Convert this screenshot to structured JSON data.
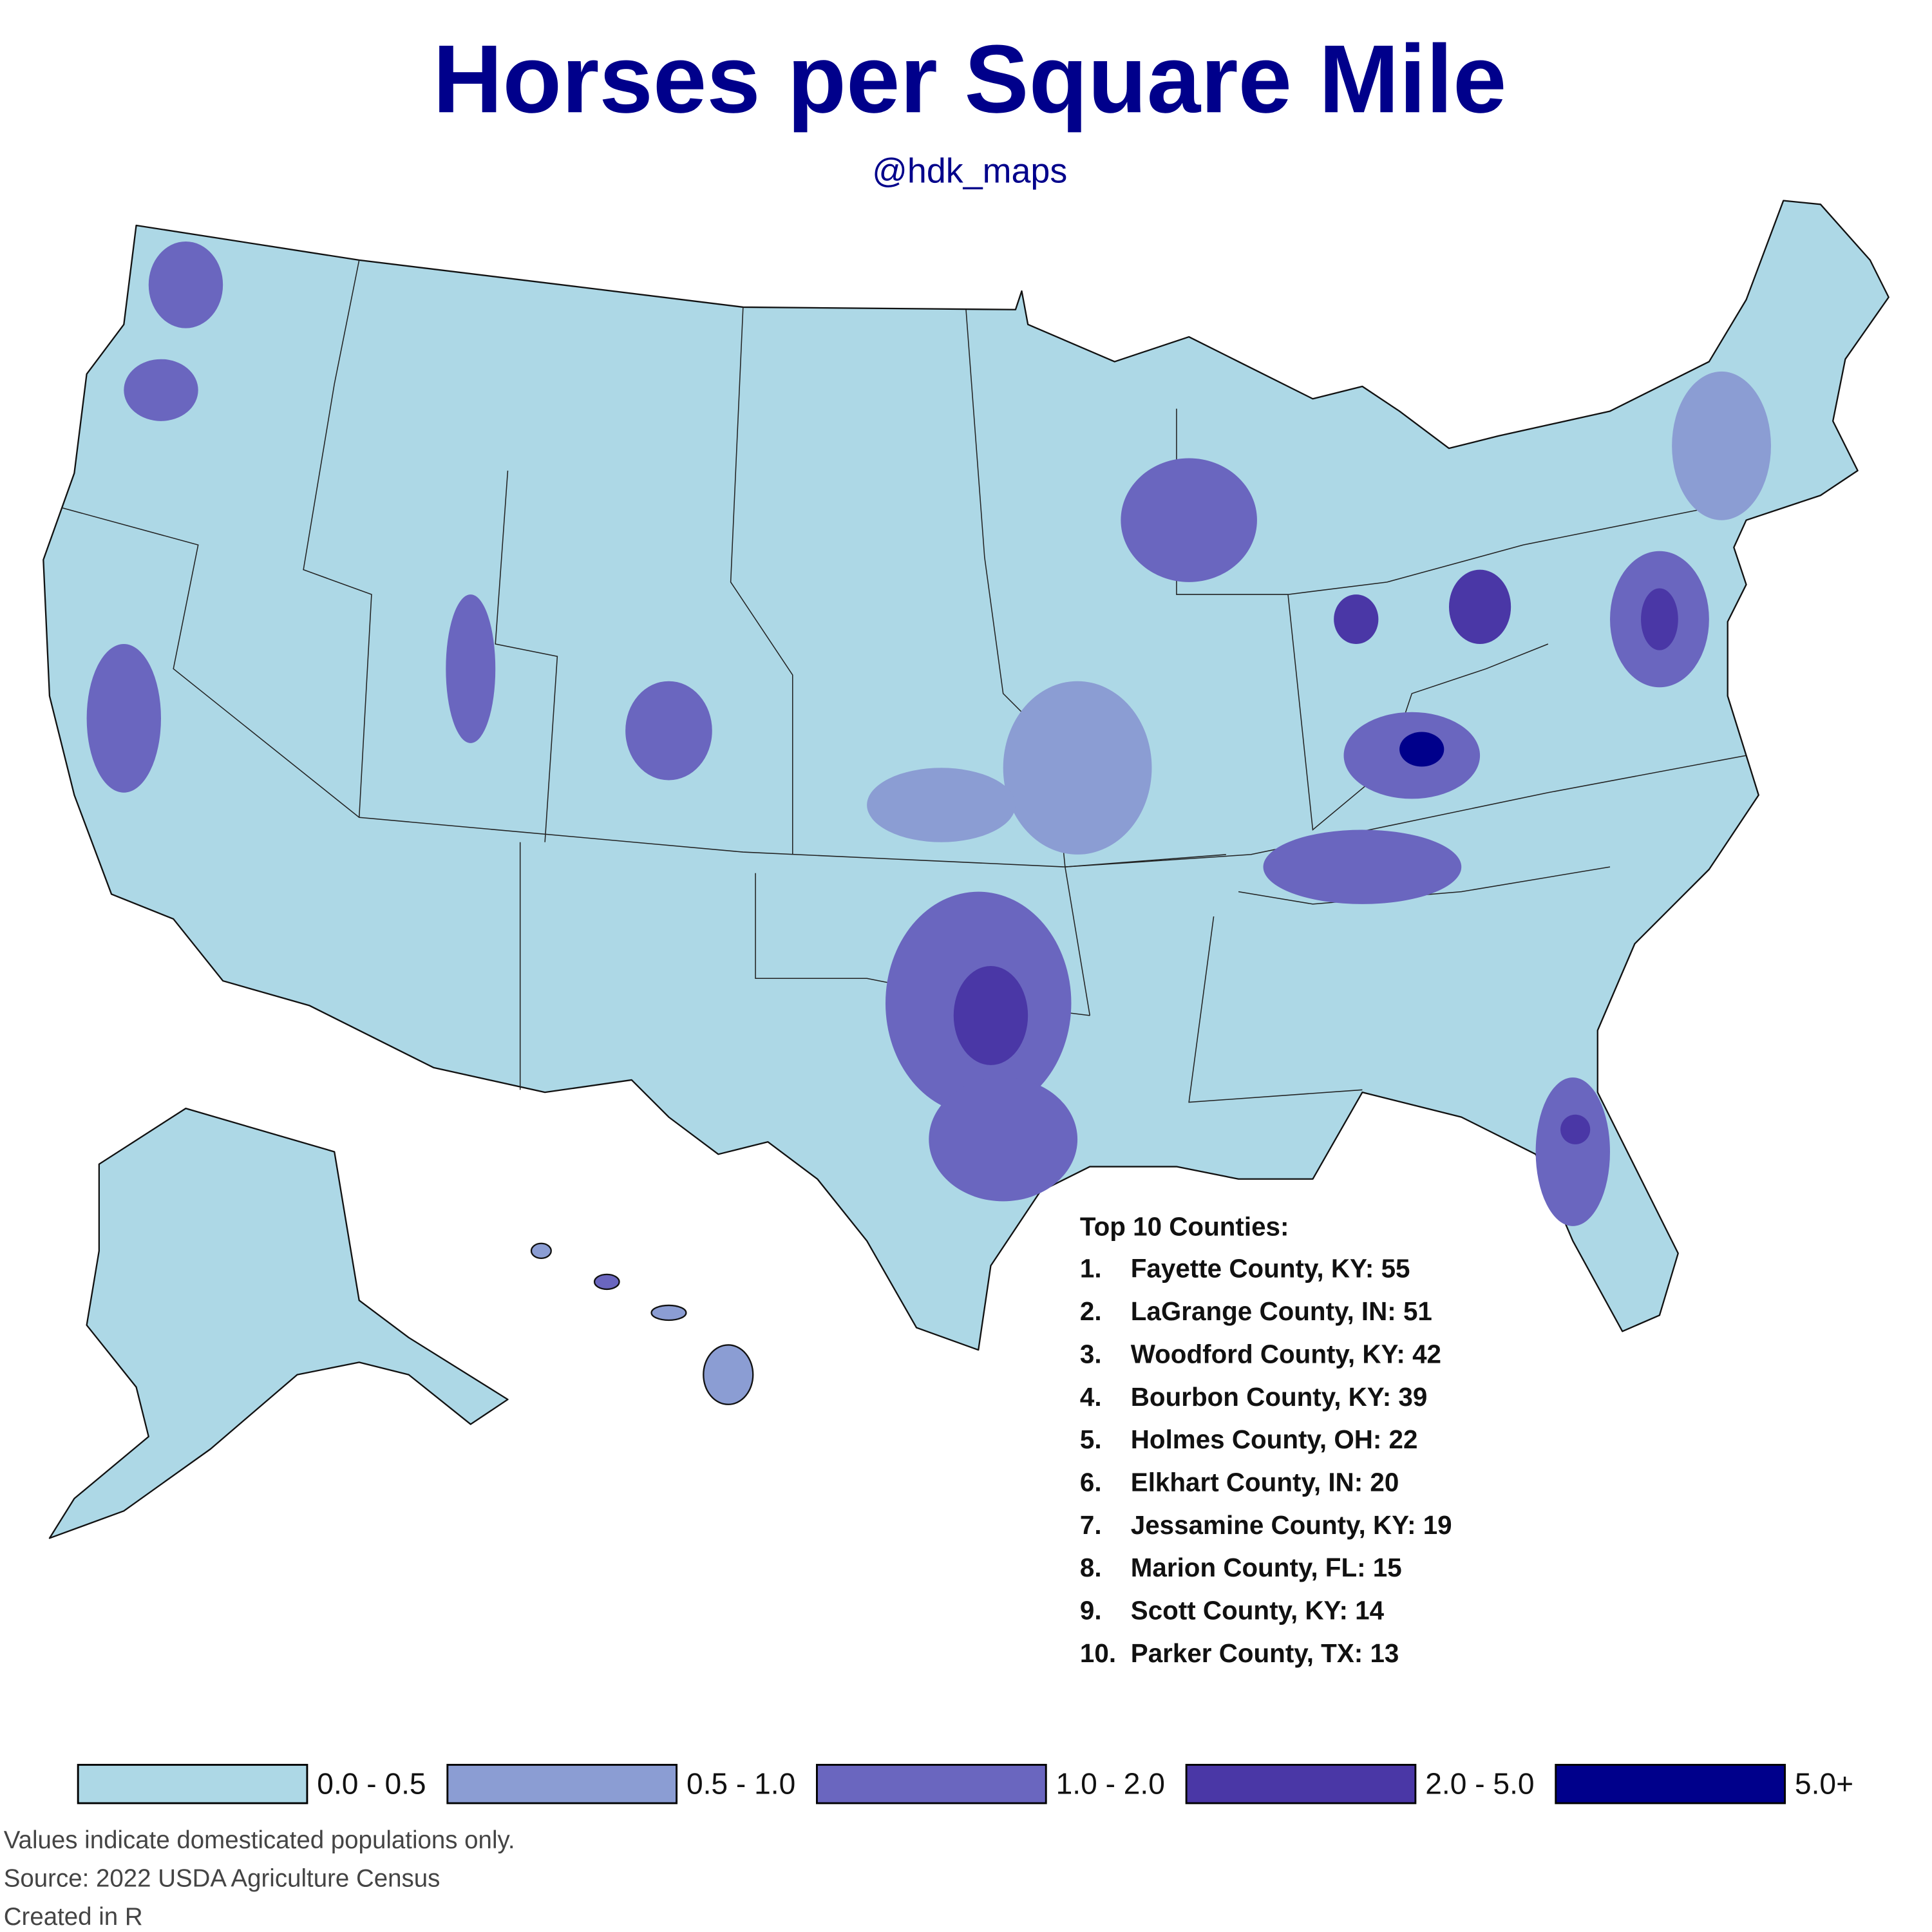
{
  "header": {
    "title": "Horses per Square Mile",
    "subtitle": "@hdk_maps"
  },
  "top_counties": {
    "heading": "Top 10 Counties:",
    "items": [
      {
        "rank": "1.",
        "text": "Fayette County, KY: 55"
      },
      {
        "rank": "2.",
        "text": "LaGrange County, IN: 51"
      },
      {
        "rank": "3.",
        "text": "Woodford County, KY: 42"
      },
      {
        "rank": "4.",
        "text": "Bourbon County, KY: 39"
      },
      {
        "rank": "5.",
        "text": "Holmes County, OH: 22"
      },
      {
        "rank": "6.",
        "text": "Elkhart County, IN: 20"
      },
      {
        "rank": "7.",
        "text": "Jessamine County, KY: 19"
      },
      {
        "rank": "8.",
        "text": "Marion County, FL: 15"
      },
      {
        "rank": "9.",
        "text": "Scott County, KY: 14"
      },
      {
        "rank": "10.",
        "text": "Parker County, TX: 13"
      }
    ]
  },
  "legend": {
    "items": [
      {
        "label": "0.0 - 0.5",
        "color": "#add8e6"
      },
      {
        "label": "0.5 - 1.0",
        "color": "#8b9dd3"
      },
      {
        "label": "1.0 - 2.0",
        "color": "#6a66bf"
      },
      {
        "label": "2.0 - 5.0",
        "color": "#4a37a6"
      },
      {
        "label": "5.0+",
        "color": "#00008b"
      }
    ]
  },
  "footer": {
    "lines": [
      "Values indicate domesticated populations only.",
      "Source: 2022 USDA Agriculture Census",
      "Created in R"
    ]
  }
}
